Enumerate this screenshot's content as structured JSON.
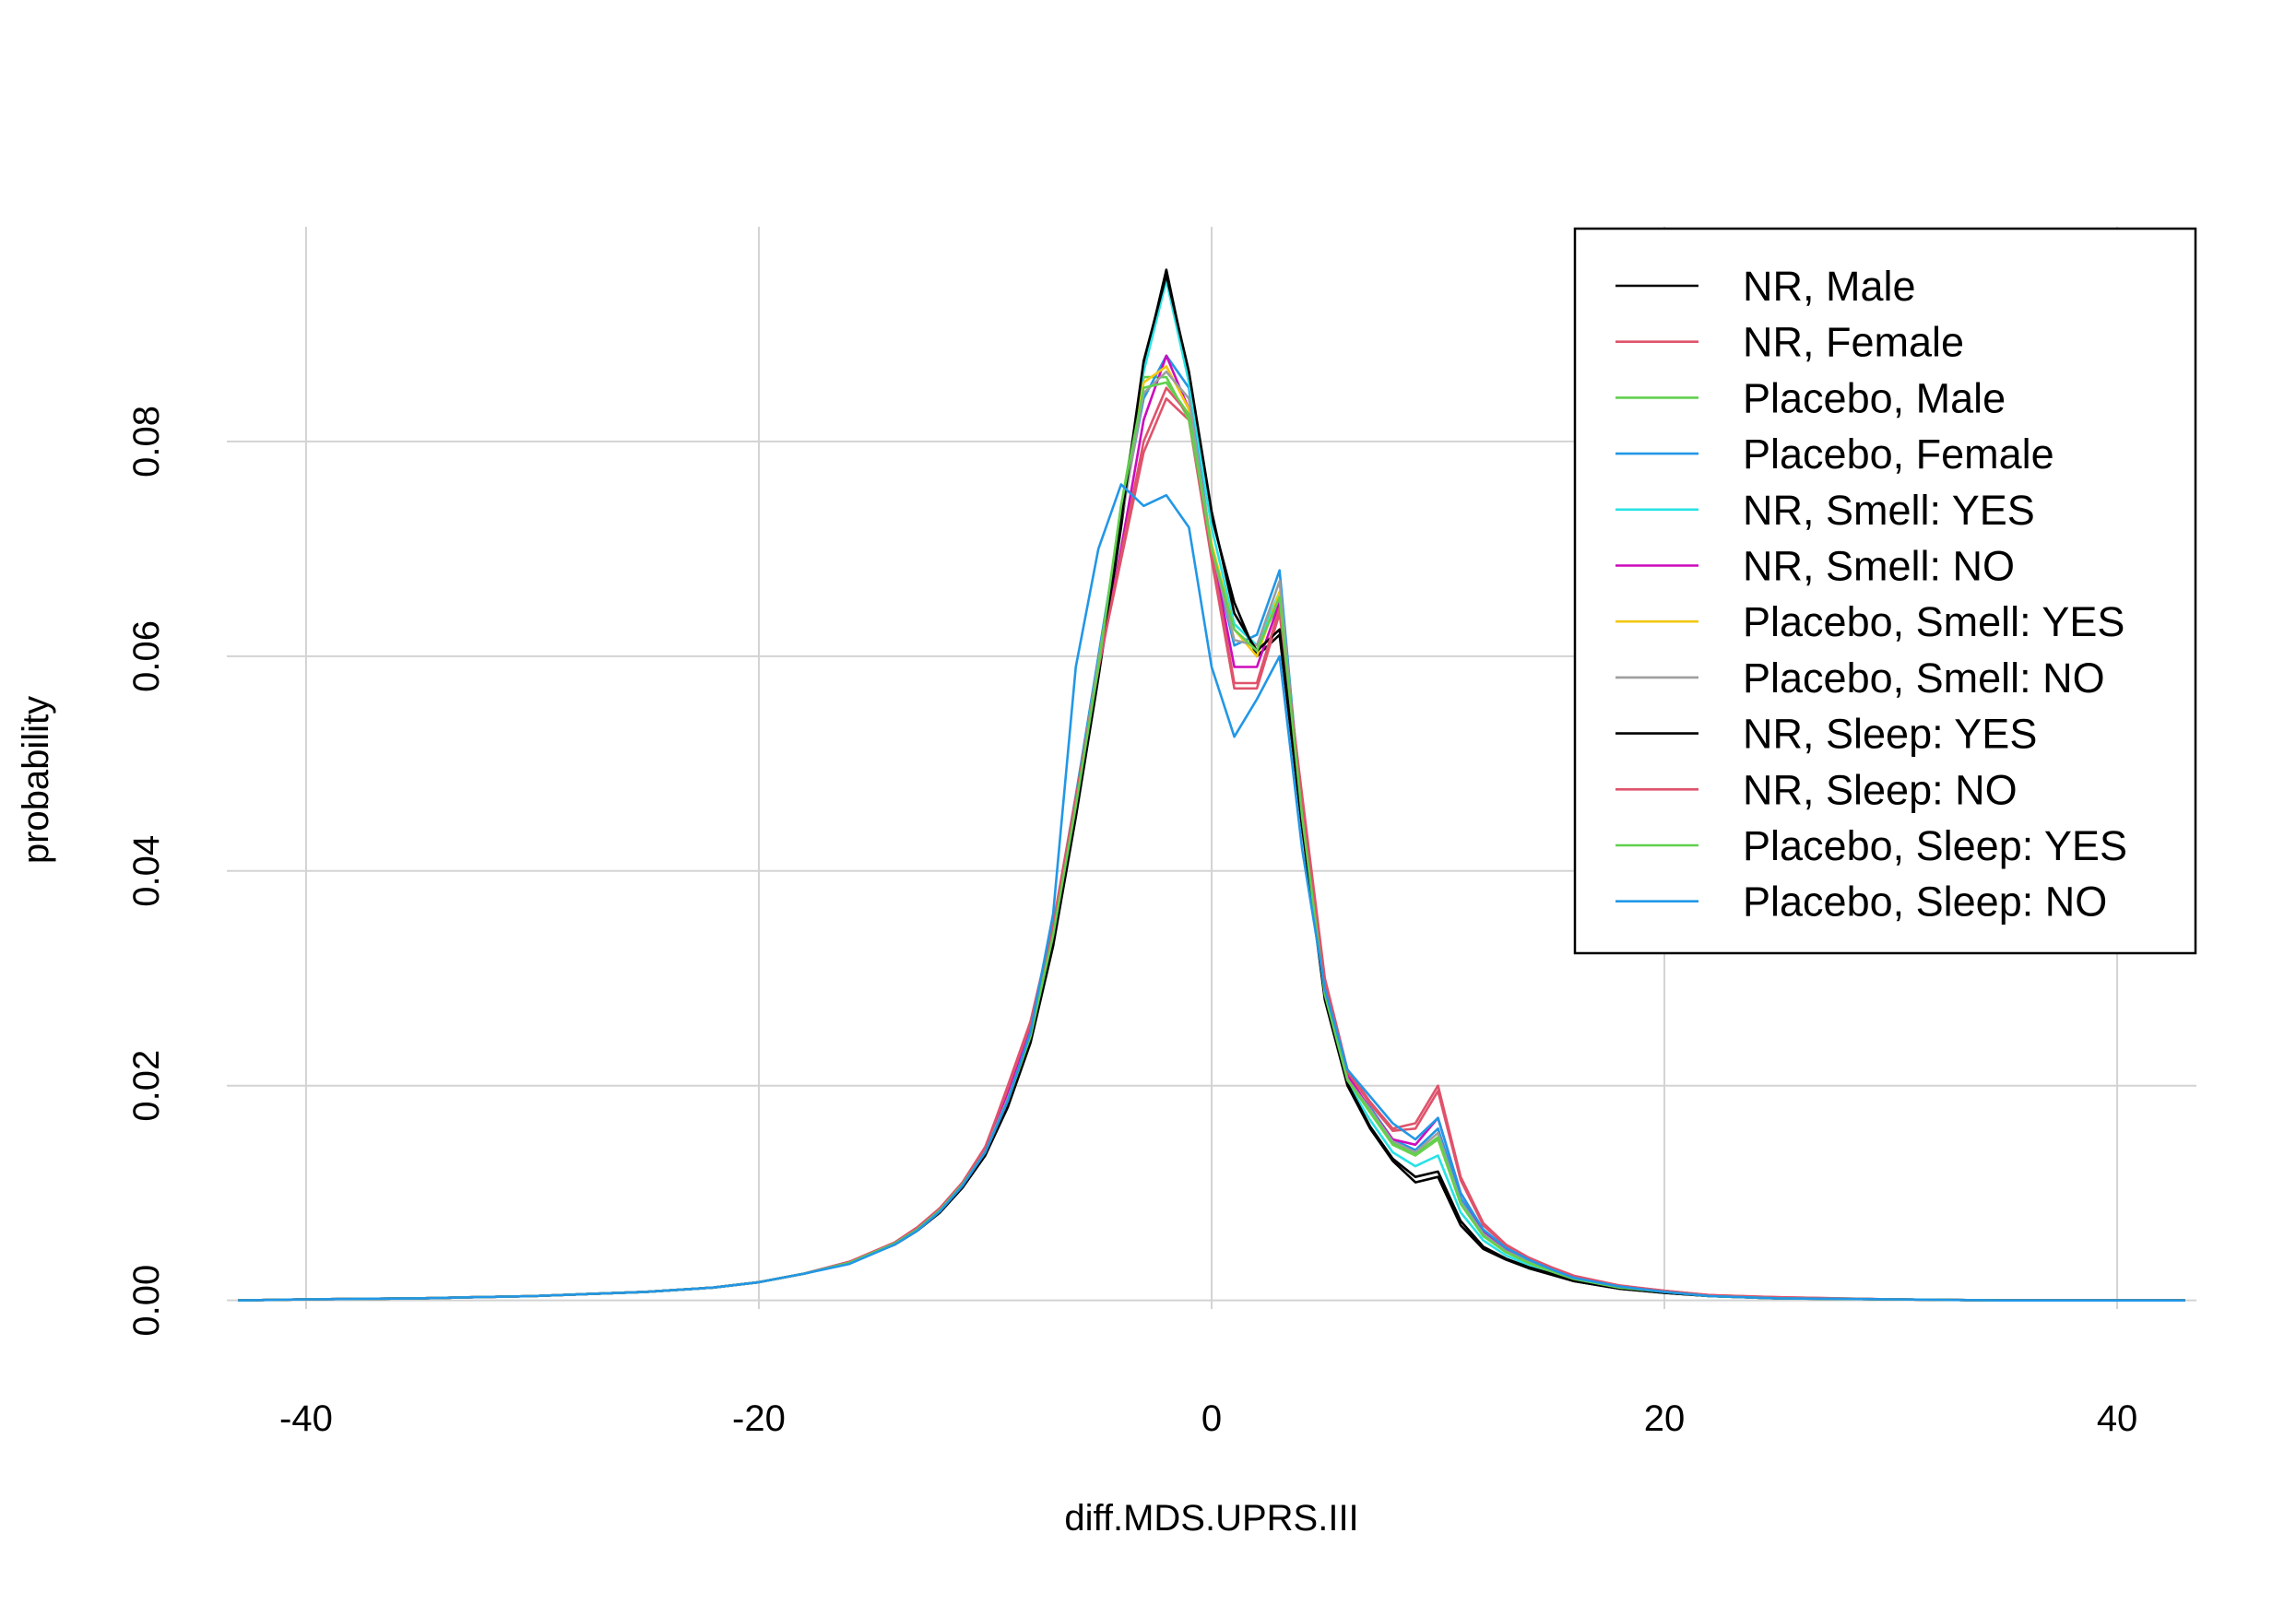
{
  "chart_data": {
    "type": "line",
    "title": "",
    "xlabel": "diff.MDS.UPRS.III",
    "ylabel": "probability",
    "xlim": [
      -43.5,
      43.5
    ],
    "ylim": [
      -0.0008,
      0.1
    ],
    "x_ticks": [
      "-40",
      "-20",
      "0",
      "20",
      "40"
    ],
    "y_ticks": [
      "0.00",
      "0.02",
      "0.04",
      "0.06",
      "0.08"
    ],
    "grid": true,
    "legend_position": "top-right",
    "x": [
      -43,
      -40,
      -35,
      -30,
      -25,
      -22,
      -20,
      -18,
      -16,
      -14,
      -13,
      -12,
      -11,
      -10,
      -9,
      -8,
      -7,
      -6,
      -5,
      -4,
      -3,
      -2,
      -1,
      0,
      1,
      2,
      3,
      4,
      5,
      6,
      7,
      8,
      9,
      10,
      11,
      12,
      13,
      14,
      15,
      16,
      18,
      20,
      22,
      25,
      30,
      35,
      40,
      43
    ],
    "series": [
      {
        "name": "NR, Male",
        "color": "#000000",
        "values": [
          0.0,
          0.0001,
          0.0002,
          0.0004,
          0.0008,
          0.0012,
          0.0017,
          0.0025,
          0.0035,
          0.0052,
          0.0065,
          0.0082,
          0.0105,
          0.0135,
          0.018,
          0.024,
          0.033,
          0.045,
          0.058,
          0.072,
          0.087,
          0.096,
          0.086,
          0.073,
          0.065,
          0.06,
          0.062,
          0.044,
          0.028,
          0.02,
          0.016,
          0.013,
          0.011,
          0.0115,
          0.007,
          0.0048,
          0.0038,
          0.003,
          0.0024,
          0.0018,
          0.0011,
          0.0007,
          0.0004,
          0.0002,
          0.0001,
          0.0,
          0.0,
          0.0
        ]
      },
      {
        "name": "NR, Female",
        "color": "#DF536B",
        "values": [
          0.0,
          0.0001,
          0.0002,
          0.0004,
          0.0008,
          0.0012,
          0.0017,
          0.0025,
          0.0036,
          0.0054,
          0.0068,
          0.0086,
          0.011,
          0.0142,
          0.02,
          0.026,
          0.035,
          0.047,
          0.059,
          0.069,
          0.079,
          0.084,
          0.082,
          0.069,
          0.057,
          0.057,
          0.064,
          0.047,
          0.03,
          0.0215,
          0.0185,
          0.016,
          0.0165,
          0.02,
          0.0115,
          0.0072,
          0.0052,
          0.004,
          0.0031,
          0.0023,
          0.0014,
          0.0009,
          0.0005,
          0.0003,
          0.0001,
          0.0,
          0.0,
          0.0
        ]
      },
      {
        "name": "Placebo, Male",
        "color": "#61D04F",
        "values": [
          0.0,
          0.0001,
          0.0002,
          0.0004,
          0.0008,
          0.0012,
          0.0017,
          0.0025,
          0.0035,
          0.0053,
          0.0066,
          0.0084,
          0.0108,
          0.0138,
          0.0185,
          0.0245,
          0.034,
          0.046,
          0.059,
          0.074,
          0.086,
          0.086,
          0.082,
          0.07,
          0.063,
          0.061,
          0.065,
          0.045,
          0.0285,
          0.0205,
          0.0175,
          0.0145,
          0.0135,
          0.015,
          0.009,
          0.006,
          0.0045,
          0.0035,
          0.0027,
          0.002,
          0.0012,
          0.0008,
          0.0004,
          0.0002,
          0.0001,
          0.0,
          0.0,
          0.0
        ]
      },
      {
        "name": "Placebo, Female",
        "color": "#2297E6",
        "values": [
          0.0,
          0.0001,
          0.0002,
          0.0004,
          0.0008,
          0.0012,
          0.0017,
          0.0025,
          0.0035,
          0.0053,
          0.0066,
          0.0084,
          0.0108,
          0.014,
          0.019,
          0.025,
          0.0345,
          0.047,
          0.06,
          0.073,
          0.084,
          0.088,
          0.085,
          0.07,
          0.061,
          0.062,
          0.068,
          0.045,
          0.0285,
          0.0205,
          0.018,
          0.015,
          0.014,
          0.016,
          0.0095,
          0.0063,
          0.0047,
          0.0036,
          0.0028,
          0.0021,
          0.0013,
          0.0008,
          0.0004,
          0.0002,
          0.0001,
          0.0,
          0.0,
          0.0
        ]
      },
      {
        "name": "NR, Smell: YES",
        "color": "#28E2E5",
        "values": [
          0.0,
          0.0001,
          0.0002,
          0.0004,
          0.0008,
          0.0012,
          0.0017,
          0.0025,
          0.0035,
          0.0052,
          0.0065,
          0.0083,
          0.0106,
          0.0137,
          0.0183,
          0.0243,
          0.0335,
          0.0455,
          0.0585,
          0.073,
          0.0865,
          0.095,
          0.0855,
          0.072,
          0.063,
          0.061,
          0.066,
          0.0445,
          0.0283,
          0.0203,
          0.0168,
          0.0138,
          0.0125,
          0.0135,
          0.0082,
          0.0056,
          0.0042,
          0.0033,
          0.0026,
          0.0019,
          0.0012,
          0.0008,
          0.0004,
          0.0002,
          0.0001,
          0.0,
          0.0,
          0.0
        ]
      },
      {
        "name": "NR, Smell: NO",
        "color": "#CD0BBC",
        "values": [
          0.0,
          0.0001,
          0.0002,
          0.0004,
          0.0008,
          0.0012,
          0.0017,
          0.0025,
          0.0036,
          0.0053,
          0.0067,
          0.0085,
          0.0108,
          0.014,
          0.0192,
          0.0252,
          0.0342,
          0.0462,
          0.0585,
          0.07,
          0.082,
          0.088,
          0.083,
          0.07,
          0.059,
          0.059,
          0.065,
          0.0455,
          0.0292,
          0.021,
          0.0178,
          0.015,
          0.0145,
          0.017,
          0.01,
          0.0065,
          0.0048,
          0.0037,
          0.0029,
          0.0021,
          0.0013,
          0.0008,
          0.0005,
          0.0002,
          0.0001,
          0.0,
          0.0,
          0.0
        ]
      },
      {
        "name": "Placebo, Smell: YES",
        "color": "#F5C710",
        "values": [
          0.0,
          0.0001,
          0.0002,
          0.0004,
          0.0008,
          0.0012,
          0.0017,
          0.0025,
          0.0035,
          0.0053,
          0.0066,
          0.0084,
          0.0107,
          0.0138,
          0.0186,
          0.0246,
          0.034,
          0.0462,
          0.0592,
          0.0735,
          0.0855,
          0.087,
          0.083,
          0.0705,
          0.0625,
          0.06,
          0.066,
          0.045,
          0.0286,
          0.0206,
          0.0176,
          0.0146,
          0.0136,
          0.0152,
          0.009,
          0.006,
          0.0045,
          0.0035,
          0.0027,
          0.002,
          0.0012,
          0.0008,
          0.0004,
          0.0002,
          0.0001,
          0.0,
          0.0,
          0.0
        ]
      },
      {
        "name": "Placebo, Smell: NO",
        "color": "#9E9E9E",
        "values": [
          0.0,
          0.0001,
          0.0002,
          0.0004,
          0.0008,
          0.0012,
          0.0017,
          0.0025,
          0.0035,
          0.0053,
          0.0066,
          0.0084,
          0.0108,
          0.0139,
          0.0188,
          0.0248,
          0.0342,
          0.0465,
          0.0595,
          0.0725,
          0.0845,
          0.0865,
          0.084,
          0.07,
          0.0615,
          0.061,
          0.067,
          0.045,
          0.0286,
          0.0206,
          0.0178,
          0.0148,
          0.0138,
          0.0156,
          0.0092,
          0.0062,
          0.0046,
          0.0036,
          0.0028,
          0.002,
          0.0012,
          0.0008,
          0.0004,
          0.0002,
          0.0001,
          0.0,
          0.0,
          0.0
        ]
      },
      {
        "name": "NR, Sleep: YES",
        "color": "#000000",
        "values": [
          0.0,
          0.0001,
          0.0002,
          0.0004,
          0.0008,
          0.0012,
          0.0017,
          0.0025,
          0.0035,
          0.0052,
          0.0065,
          0.0082,
          0.0106,
          0.0136,
          0.0182,
          0.0242,
          0.0332,
          0.0452,
          0.0582,
          0.0725,
          0.0875,
          0.0955,
          0.0865,
          0.0735,
          0.064,
          0.0605,
          0.0625,
          0.0442,
          0.0282,
          0.0202,
          0.0162,
          0.0132,
          0.0115,
          0.012,
          0.0074,
          0.005,
          0.0039,
          0.0031,
          0.0025,
          0.0018,
          0.0011,
          0.0007,
          0.0004,
          0.0002,
          0.0001,
          0.0,
          0.0,
          0.0
        ]
      },
      {
        "name": "NR, Sleep: NO",
        "color": "#DF536B",
        "values": [
          0.0,
          0.0001,
          0.0002,
          0.0004,
          0.0008,
          0.0012,
          0.0017,
          0.0025,
          0.0036,
          0.0054,
          0.0068,
          0.0086,
          0.011,
          0.0143,
          0.0198,
          0.0258,
          0.0348,
          0.0468,
          0.0588,
          0.0695,
          0.08,
          0.085,
          0.0825,
          0.0695,
          0.0575,
          0.0575,
          0.0645,
          0.0468,
          0.0298,
          0.0213,
          0.0183,
          0.0158,
          0.016,
          0.0195,
          0.0112,
          0.007,
          0.0051,
          0.0039,
          0.003,
          0.0022,
          0.0014,
          0.0009,
          0.0005,
          0.0003,
          0.0001,
          0.0,
          0.0,
          0.0
        ]
      },
      {
        "name": "Placebo, Sleep: YES",
        "color": "#61D04F",
        "values": [
          0.0,
          0.0001,
          0.0002,
          0.0004,
          0.0008,
          0.0012,
          0.0017,
          0.0025,
          0.0035,
          0.0053,
          0.0066,
          0.0084,
          0.0108,
          0.0138,
          0.0186,
          0.0246,
          0.034,
          0.046,
          0.059,
          0.074,
          0.085,
          0.0855,
          0.0825,
          0.07,
          0.0625,
          0.0605,
          0.0655,
          0.045,
          0.0285,
          0.0205,
          0.0176,
          0.0146,
          0.0136,
          0.0152,
          0.009,
          0.006,
          0.0045,
          0.0035,
          0.0027,
          0.002,
          0.0012,
          0.0008,
          0.0004,
          0.0002,
          0.0001,
          0.0,
          0.0,
          0.0
        ]
      },
      {
        "name": "Placebo, Sleep: NO",
        "color": "#2297E6",
        "values": [
          0.0,
          0.0001,
          0.0002,
          0.0004,
          0.0008,
          0.0012,
          0.0017,
          0.0025,
          0.0034,
          0.0052,
          0.0065,
          0.0083,
          0.0107,
          0.0138,
          0.0186,
          0.025,
          0.036,
          0.059,
          0.07,
          0.076,
          0.074,
          0.075,
          0.072,
          0.059,
          0.0525,
          0.056,
          0.06,
          0.042,
          0.029,
          0.0215,
          0.019,
          0.0165,
          0.015,
          0.017,
          0.01,
          0.0066,
          0.0049,
          0.0038,
          0.0029,
          0.0021,
          0.0013,
          0.0008,
          0.0004,
          0.0002,
          0.0001,
          0.0,
          0.0,
          0.0
        ]
      }
    ]
  }
}
